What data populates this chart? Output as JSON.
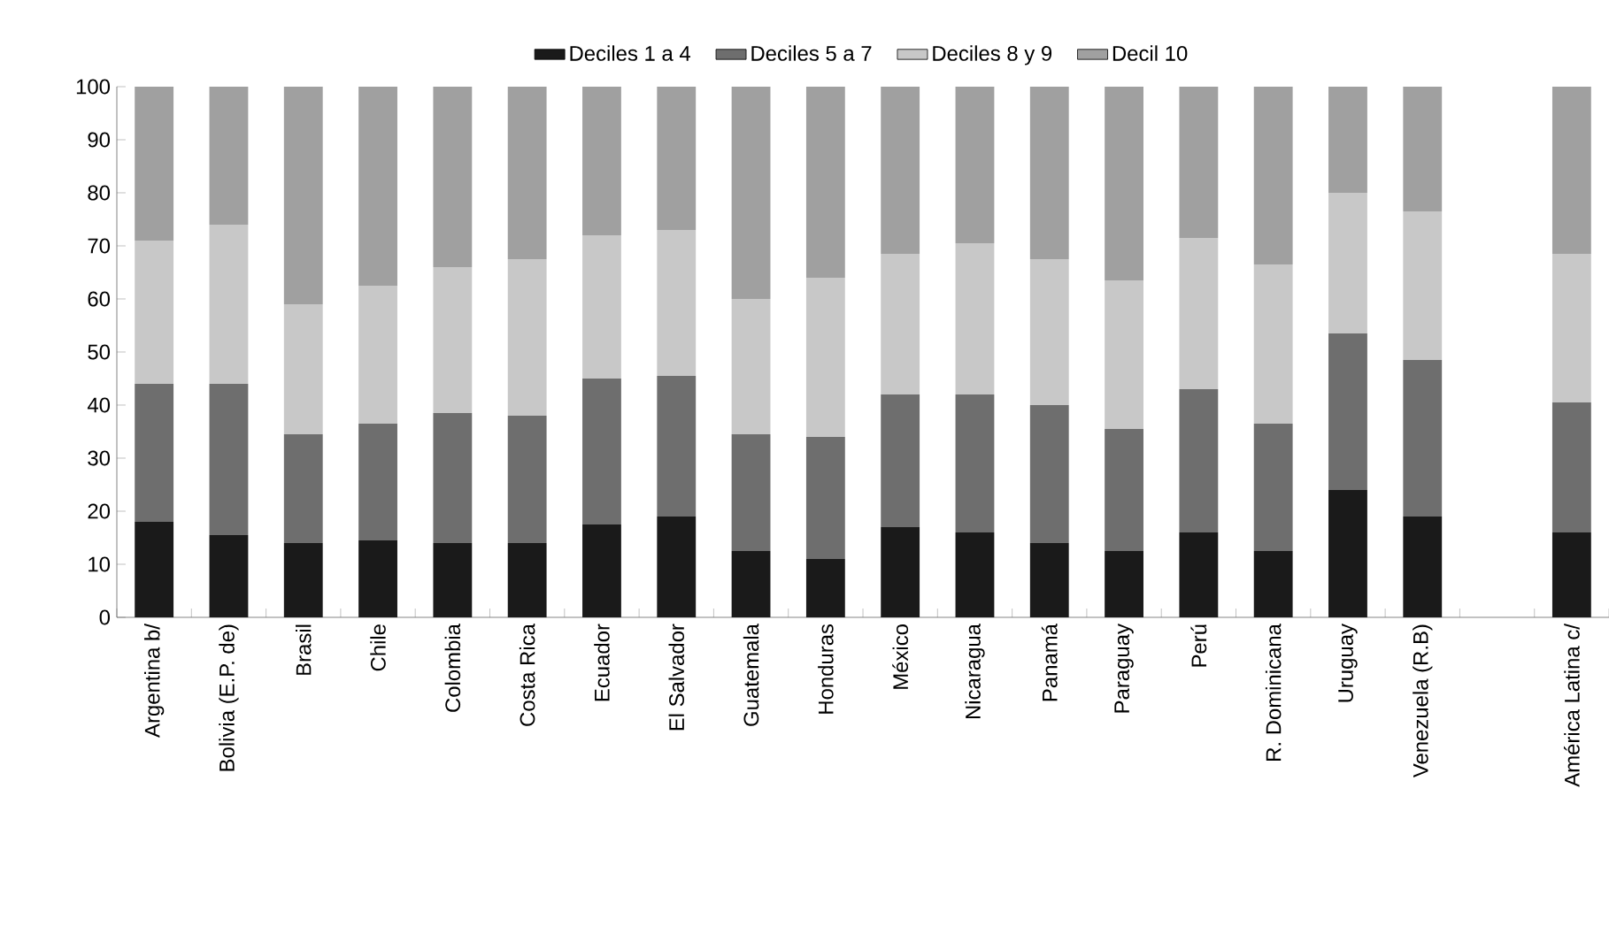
{
  "chart_data": {
    "type": "bar",
    "stacked": true,
    "categories": [
      "Argentina b/",
      "Bolivia (E.P. de)",
      "Brasil",
      "Chile",
      "Colombia",
      "Costa Rica",
      "Ecuador",
      "El Salvador",
      "Guatemala",
      "Honduras",
      "México",
      "Nicaragua",
      "Panamá",
      "Paraguay",
      "Perú",
      "R. Dominicana",
      "Uruguay",
      "Venezuela (R.B)",
      null,
      "América Latina c/"
    ],
    "series": [
      {
        "name": "Deciles 1 a 4",
        "color": "#1a1a1a",
        "values": [
          18,
          15.5,
          14,
          14.5,
          14,
          14,
          17.5,
          19,
          12.5,
          11,
          17,
          16,
          14,
          12.5,
          16,
          12.5,
          24,
          19,
          null,
          16
        ]
      },
      {
        "name": "Deciles 5 a 7",
        "color": "#6e6e6e",
        "values": [
          26,
          28.5,
          20.5,
          22,
          24.5,
          24,
          27.5,
          26.5,
          22,
          23,
          25,
          26,
          26,
          23,
          27,
          24,
          29.5,
          29.5,
          null,
          24.5
        ]
      },
      {
        "name": "Deciles 8 y 9",
        "color": "#c8c8c8",
        "values": [
          27,
          30,
          24.5,
          26,
          27.5,
          29.5,
          27,
          27.5,
          25.5,
          30,
          26.5,
          28.5,
          27.5,
          28,
          28.5,
          30,
          26.5,
          28,
          null,
          28
        ]
      },
      {
        "name": "Decil 10",
        "color": "#a0a0a0",
        "values": [
          29,
          26,
          41,
          37.5,
          34,
          32.5,
          28,
          27,
          40,
          36,
          31.5,
          29.5,
          32.5,
          36.5,
          28.5,
          33.5,
          20,
          23.5,
          null,
          31.5
        ]
      }
    ],
    "ylim": [
      0,
      100
    ],
    "yticks": [
      0,
      10,
      20,
      30,
      40,
      50,
      60,
      70,
      80,
      90,
      100
    ],
    "legend": "top"
  }
}
